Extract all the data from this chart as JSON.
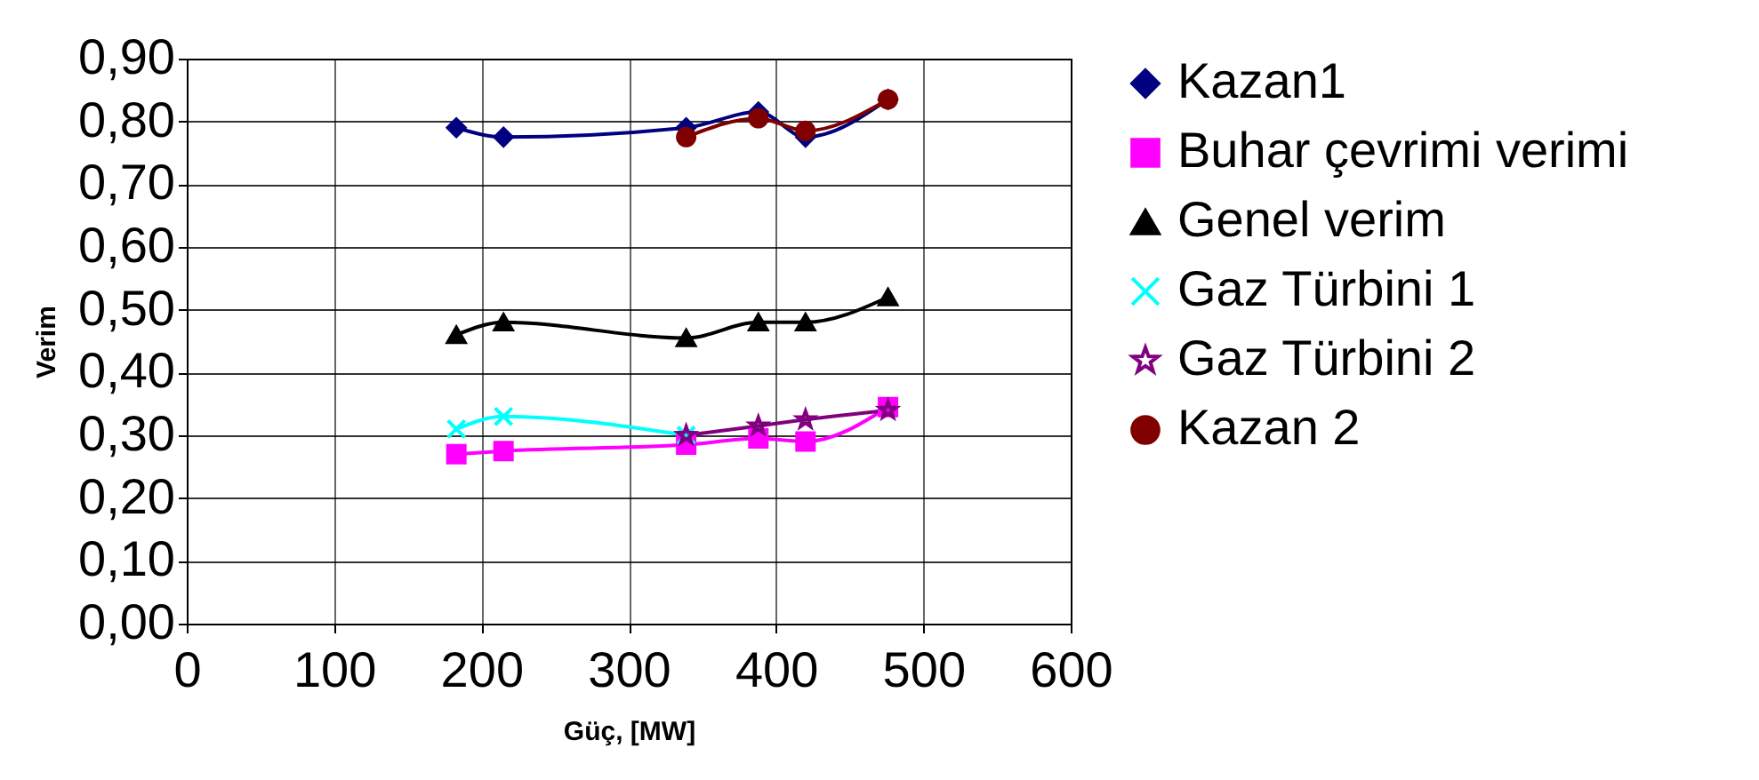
{
  "chart_data": {
    "type": "line",
    "xlabel": "Güç, [MW]",
    "ylabel": "Verim",
    "xlim": [
      0,
      600
    ],
    "xticks": [
      0,
      100,
      200,
      300,
      400,
      500,
      600
    ],
    "ylim": [
      0,
      0.9
    ],
    "yticks": [
      {
        "value": 0,
        "label": "0,00"
      },
      {
        "value": 0.1,
        "label": "0,10"
      },
      {
        "value": 0.2,
        "label": "0,20"
      },
      {
        "value": 0.3,
        "label": "0,30"
      },
      {
        "value": 0.4,
        "label": "0,40"
      },
      {
        "value": 0.5,
        "label": "0,50"
      },
      {
        "value": 0.6,
        "label": "0,60"
      },
      {
        "value": 0.7,
        "label": "0,70"
      },
      {
        "value": 0.8,
        "label": "0,80"
      },
      {
        "value": 0.9,
        "label": "0,90"
      }
    ],
    "grid": true,
    "legend": "right",
    "line_style": "solid",
    "series": [
      {
        "name": "Kazan1",
        "color": "#000080",
        "marker": "diamond",
        "x": [
          183,
          215,
          339,
          388,
          420,
          476
        ],
        "values": [
          0.79,
          0.775,
          0.79,
          0.815,
          0.775,
          0.835
        ]
      },
      {
        "name": "Buhar çevrimi verimi",
        "color": "#ff00ff",
        "marker": "square",
        "x": [
          183,
          215,
          339,
          388,
          420,
          476
        ],
        "values": [
          0.27,
          0.275,
          0.285,
          0.295,
          0.29,
          0.345
        ]
      },
      {
        "name": "Genel verim",
        "color": "#000000",
        "marker": "triangle",
        "x": [
          183,
          215,
          339,
          388,
          420,
          476
        ],
        "values": [
          0.46,
          0.48,
          0.455,
          0.48,
          0.48,
          0.52
        ]
      },
      {
        "name": "Gaz Türbini 1",
        "color": "#00ffff",
        "marker": "cross",
        "x": [
          183,
          215,
          339
        ],
        "values": [
          0.31,
          0.33,
          0.3
        ]
      },
      {
        "name": "Gaz Türbini 2",
        "color": "#800080",
        "marker": "star",
        "x": [
          339,
          388,
          420,
          476
        ],
        "values": [
          0.3,
          0.315,
          0.325,
          0.34
        ]
      },
      {
        "name": "Kazan 2",
        "color": "#800000",
        "marker": "circle",
        "x": [
          339,
          388,
          420,
          476
        ],
        "values": [
          0.775,
          0.805,
          0.785,
          0.835
        ]
      }
    ]
  }
}
